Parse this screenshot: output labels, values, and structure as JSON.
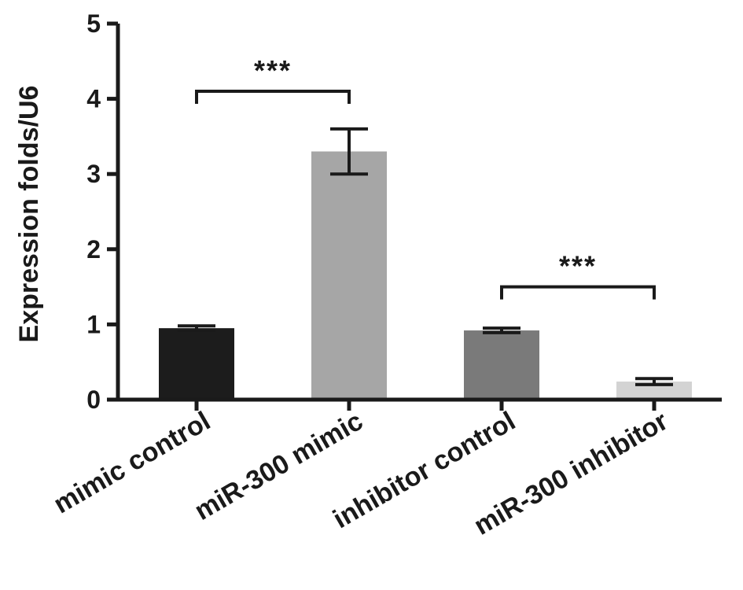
{
  "chart_data": {
    "type": "bar",
    "title": "",
    "xlabel": "",
    "ylabel": "Expression folds/U6",
    "ylim": [
      0,
      5
    ],
    "yticks": [
      0,
      1,
      2,
      3,
      4,
      5
    ],
    "grid": false,
    "categories": [
      "mimic control",
      "miR-300 mimic",
      "inhibitor control",
      "miR-300 inhibitor"
    ],
    "values": [
      0.95,
      3.3,
      0.92,
      0.24
    ],
    "errors": [
      0.03,
      0.3,
      0.03,
      0.04
    ],
    "colors": [
      "#1c1c1c",
      "#a6a6a6",
      "#7a7a7a",
      "#d3d3d3"
    ],
    "significance": [
      {
        "from": 0,
        "to": 1,
        "label": "***",
        "y": 4.1
      },
      {
        "from": 2,
        "to": 3,
        "label": "***",
        "y": 1.5
      }
    ]
  }
}
